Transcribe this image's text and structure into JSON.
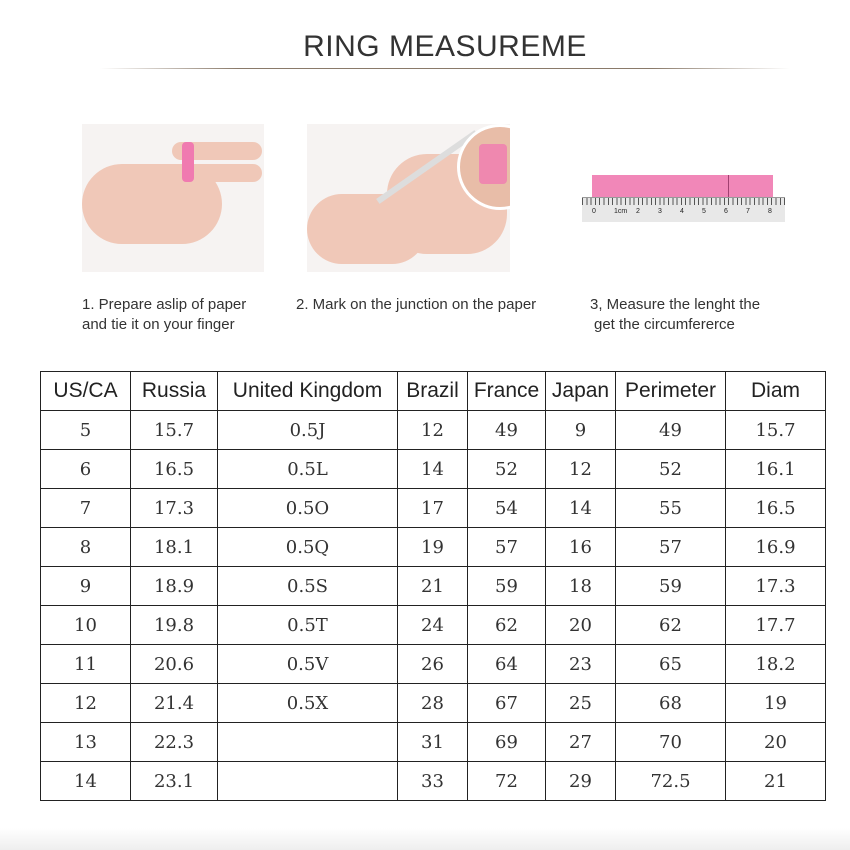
{
  "title": "RING MEASUREME",
  "steps": [
    {
      "line1": "1. Prepare aslip of paper",
      "line2": "and tie it on your finger"
    },
    {
      "line1": "2. Mark on the junction on the paper",
      "line2": ""
    },
    {
      "line1": "3, Measure the lenght the",
      "line2": "get the circumfererce"
    }
  ],
  "ruler_labels": [
    "0",
    "1cm",
    "2",
    "3",
    "4",
    "5",
    "6",
    "7",
    "8"
  ],
  "colors": {
    "paper_strip": "#f07ab0"
  },
  "table": {
    "headers": [
      "US/CA",
      "Russia",
      "United Kingdom",
      "Brazil",
      "France",
      "Japan",
      "Perimeter",
      "Diam"
    ],
    "rows": [
      [
        "5",
        "15.7",
        "0.5J",
        "12",
        "49",
        "9",
        "49",
        "15.7"
      ],
      [
        "6",
        "16.5",
        "0.5L",
        "14",
        "52",
        "12",
        "52",
        "16.1"
      ],
      [
        "7",
        "17.3",
        "0.5O",
        "17",
        "54",
        "14",
        "55",
        "16.5"
      ],
      [
        "8",
        "18.1",
        "0.5Q",
        "19",
        "57",
        "16",
        "57",
        "16.9"
      ],
      [
        "9",
        "18.9",
        "0.5S",
        "21",
        "59",
        "18",
        "59",
        "17.3"
      ],
      [
        "10",
        "19.8",
        "0.5T",
        "24",
        "62",
        "20",
        "62",
        "17.7"
      ],
      [
        "11",
        "20.6",
        "0.5V",
        "26",
        "64",
        "23",
        "65",
        "18.2"
      ],
      [
        "12",
        "21.4",
        "0.5X",
        "28",
        "67",
        "25",
        "68",
        "19"
      ],
      [
        "13",
        "22.3",
        "",
        "31",
        "69",
        "27",
        "70",
        "20"
      ],
      [
        "14",
        "23.1",
        "",
        "33",
        "72",
        "29",
        "72.5",
        "21"
      ]
    ]
  }
}
